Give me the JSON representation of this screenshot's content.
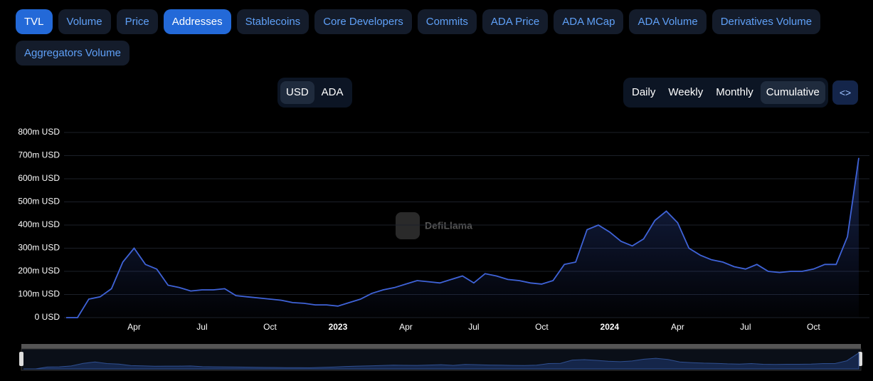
{
  "tabs": [
    {
      "label": "TVL",
      "active": true
    },
    {
      "label": "Volume",
      "active": false
    },
    {
      "label": "Price",
      "active": false
    },
    {
      "label": "Addresses",
      "active": true
    },
    {
      "label": "Stablecoins",
      "active": false
    },
    {
      "label": "Core Developers",
      "active": false
    },
    {
      "label": "Commits",
      "active": false
    },
    {
      "label": "ADA Price",
      "active": false
    },
    {
      "label": "ADA MCap",
      "active": false
    },
    {
      "label": "ADA Volume",
      "active": false
    },
    {
      "label": "Derivatives Volume",
      "active": false
    },
    {
      "label": "Aggregators Volume",
      "active": false
    }
  ],
  "currency": [
    {
      "label": "USD",
      "active": true
    },
    {
      "label": "ADA",
      "active": false
    }
  ],
  "periods": [
    {
      "label": "Daily",
      "active": false
    },
    {
      "label": "Weekly",
      "active": false
    },
    {
      "label": "Monthly",
      "active": false
    },
    {
      "label": "Cumulative",
      "active": true
    }
  ],
  "watermark": "DefiLlama",
  "chart_data": {
    "type": "line",
    "categories": [
      null,
      null,
      null,
      null,
      null,
      null,
      "Apr",
      null,
      null,
      null,
      null,
      null,
      "Jul",
      null,
      null,
      null,
      null,
      null,
      "Oct",
      null,
      null,
      null,
      null,
      null,
      "2023",
      null,
      null,
      null,
      null,
      null,
      "Apr",
      null,
      null,
      null,
      null,
      null,
      "Jul",
      null,
      null,
      null,
      null,
      null,
      "Oct",
      null,
      null,
      null,
      null,
      null,
      "2024",
      null,
      null,
      null,
      null,
      null,
      "Apr",
      null,
      null,
      null,
      null,
      null,
      "Jul",
      null,
      null,
      null,
      null,
      null,
      "Oct",
      null,
      null,
      null,
      null
    ],
    "values": [
      0,
      0,
      80,
      90,
      125,
      240,
      300,
      230,
      210,
      140,
      130,
      115,
      120,
      120,
      125,
      95,
      90,
      85,
      80,
      75,
      65,
      62,
      55,
      55,
      50,
      65,
      80,
      105,
      120,
      130,
      145,
      160,
      155,
      150,
      165,
      180,
      150,
      190,
      180,
      165,
      160,
      150,
      145,
      160,
      230,
      240,
      380,
      400,
      370,
      330,
      310,
      340,
      420,
      460,
      410,
      300,
      270,
      250,
      240,
      220,
      210,
      230,
      200,
      195,
      200,
      200,
      210,
      230,
      230,
      350,
      690
    ],
    "color": "#3f63d8",
    "ylim": [
      0,
      800
    ],
    "yticks": [
      {
        "value": 0,
        "label": "0 USD"
      },
      {
        "value": 100,
        "label": "100m USD"
      },
      {
        "value": 200,
        "label": "200m USD"
      },
      {
        "value": 300,
        "label": "300m USD"
      },
      {
        "value": 400,
        "label": "400m USD"
      },
      {
        "value": 500,
        "label": "500m USD"
      },
      {
        "value": 600,
        "label": "600m USD"
      },
      {
        "value": 700,
        "label": "700m USD"
      },
      {
        "value": 800,
        "label": "800m USD"
      }
    ],
    "grid": true
  }
}
